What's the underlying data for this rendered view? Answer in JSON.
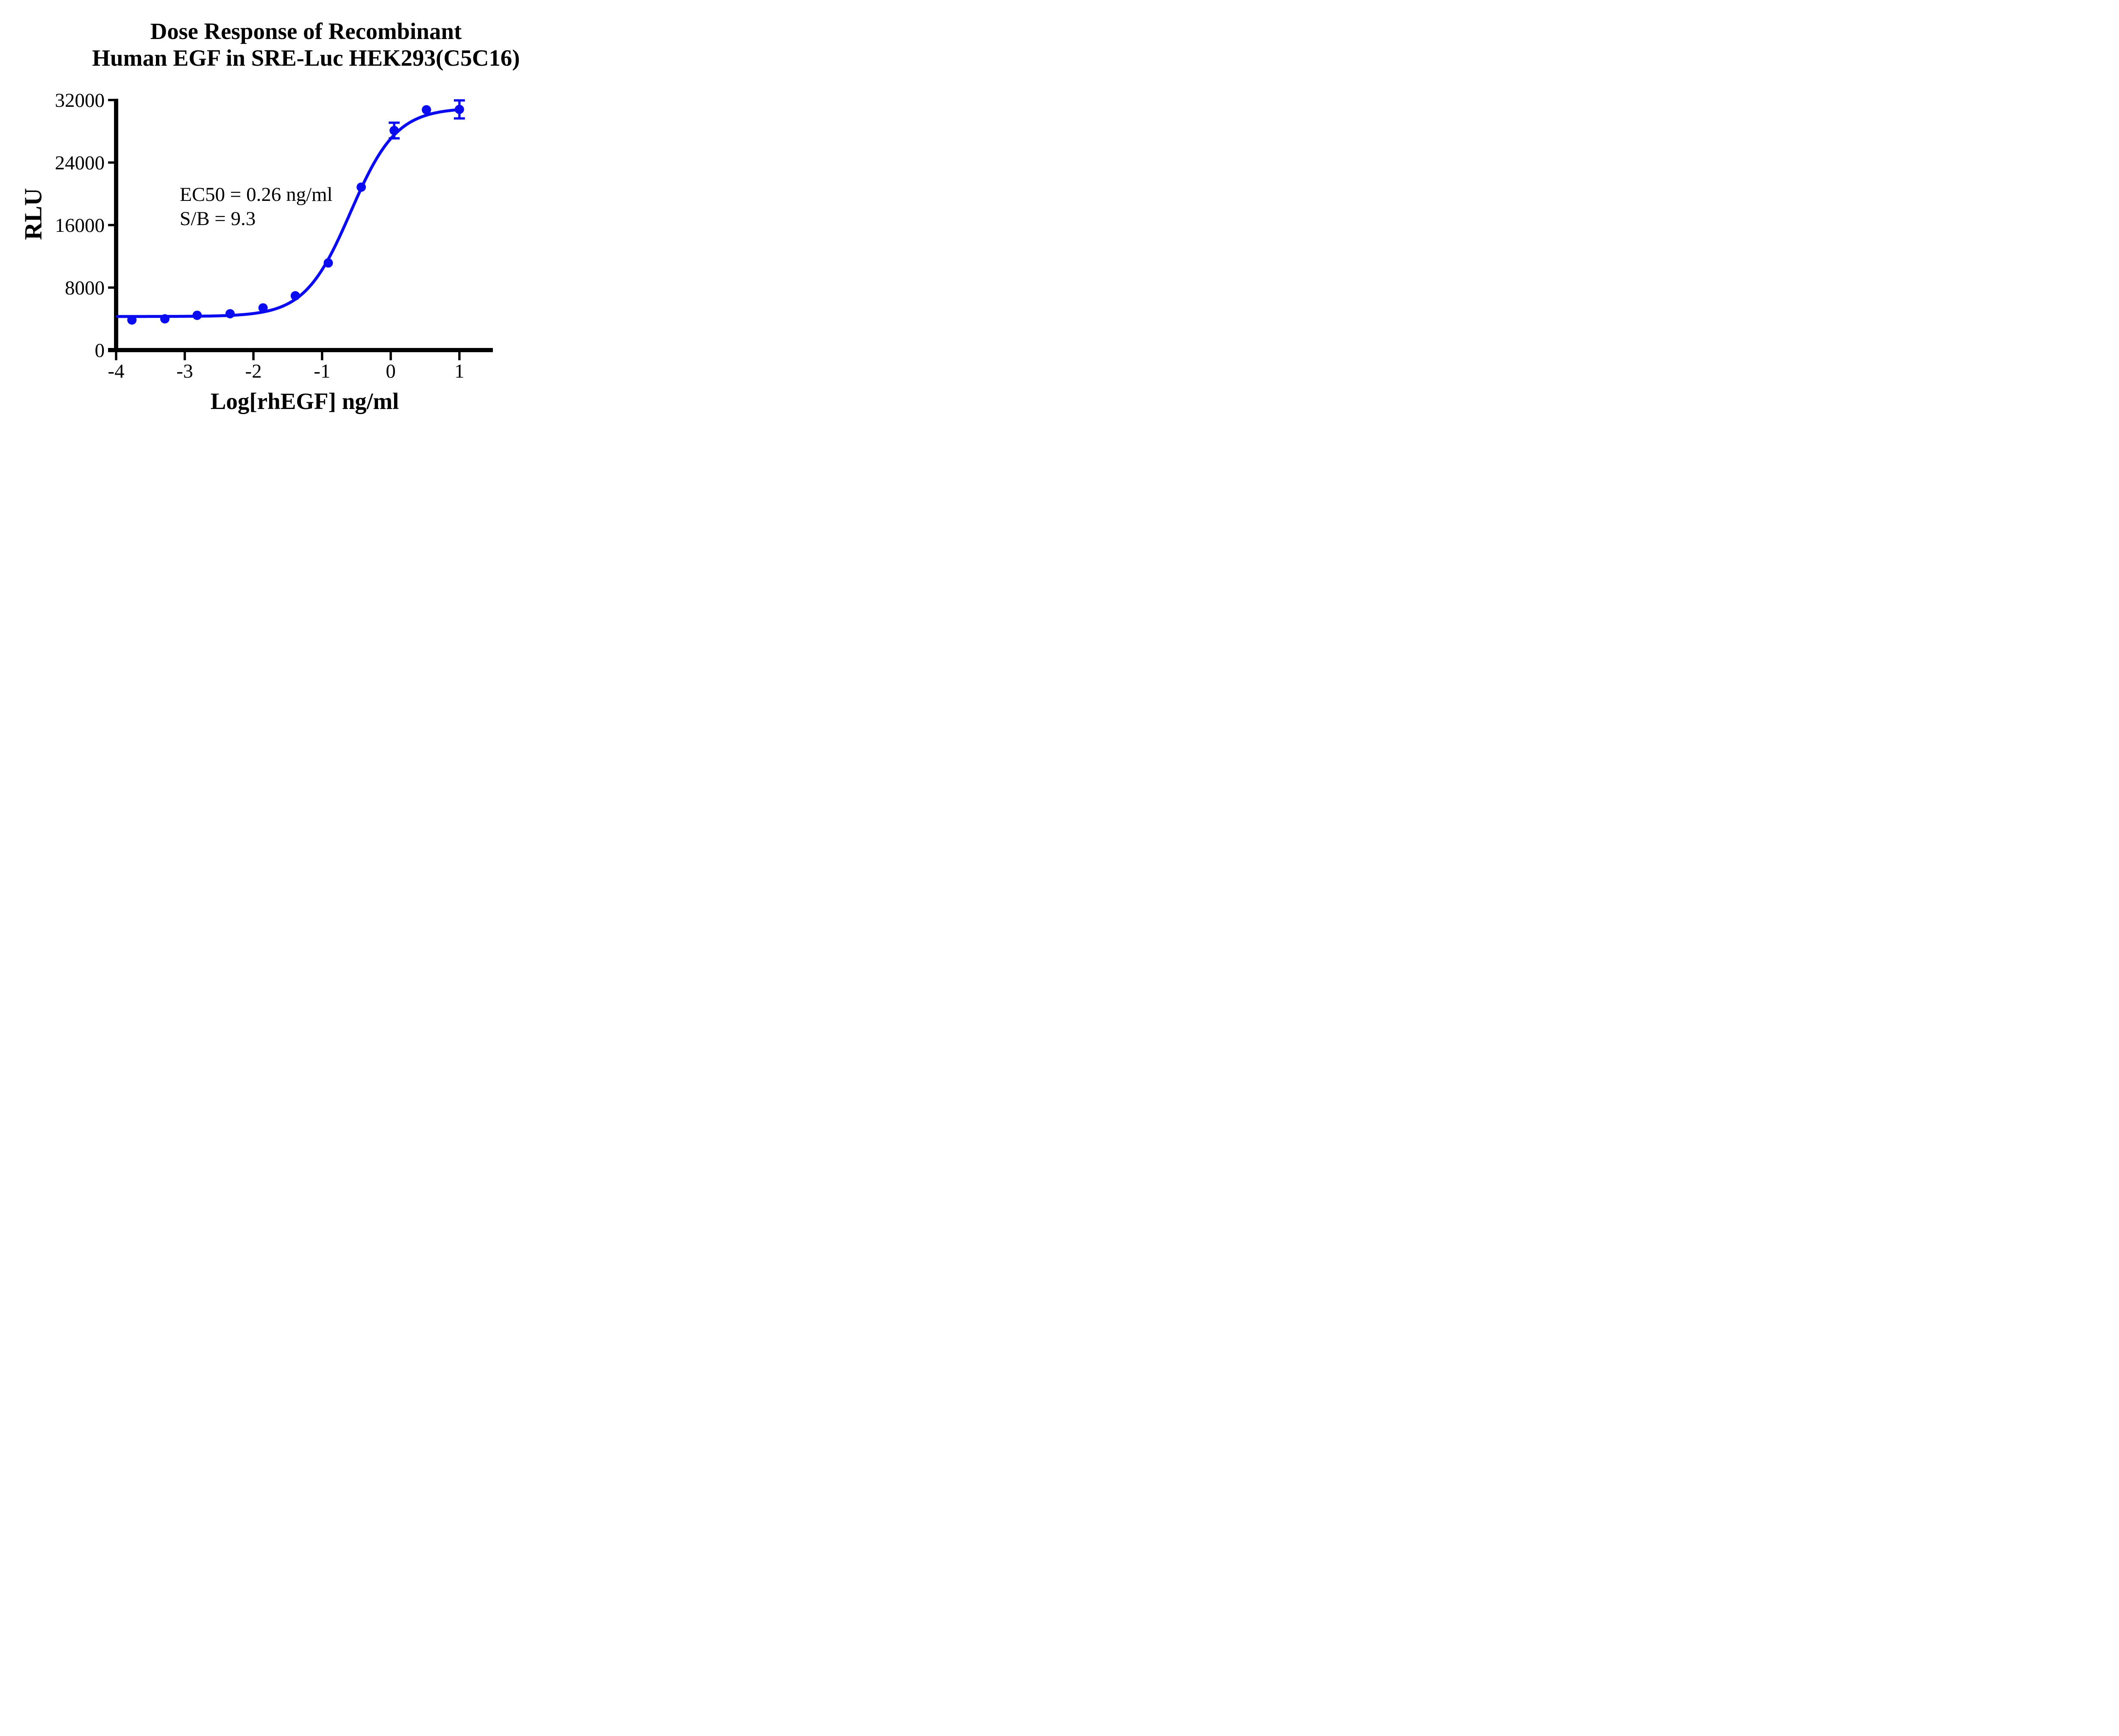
{
  "title": {
    "line1": "Dose Response of Recombinant",
    "line2": "Human EGF in SRE-Luc HEK293(C5C16)"
  },
  "annotation": {
    "line1": "EC50 = 0.26 ng/ml",
    "line2": "S/B = 9.3"
  },
  "colors": {
    "series": "#0B0BF0",
    "axis": "#000000",
    "background": "#ffffff"
  },
  "chart_data": {
    "type": "scatter",
    "title": "Dose Response of Recombinant Human EGF in SRE-Luc HEK293(C5C16)",
    "xlabel": "Log[rhEGF] ng/ml",
    "ylabel": "RLU",
    "xlim": [
      -4,
      1.5
    ],
    "ylim": [
      0,
      32000
    ],
    "x_ticks": [
      -4,
      -3,
      -2,
      -1,
      0,
      1
    ],
    "y_ticks": [
      0,
      8000,
      16000,
      24000,
      32000
    ],
    "grid": false,
    "legend_position": "none",
    "series": [
      {
        "name": "rhEGF",
        "marker": "circle",
        "color": "#0B0BF0",
        "x": [
          -3.77,
          -3.29,
          -2.82,
          -2.34,
          -1.86,
          -1.39,
          -0.91,
          -0.43,
          0.05,
          0.52,
          1.0
        ],
        "y": [
          3850,
          4000,
          4450,
          4650,
          5400,
          6950,
          11150,
          20850,
          28100,
          30750,
          30800
        ],
        "y_err": [
          0,
          0,
          0,
          0,
          0,
          0,
          0,
          0,
          1000,
          0,
          1150
        ]
      }
    ],
    "fit_curve": {
      "model": "4PL sigmoid",
      "bottom": 4300,
      "top": 31000,
      "log_ec50": -0.585,
      "hill_slope": 1.3,
      "x_range": [
        -3.98,
        1.0
      ]
    },
    "annotations": [
      "EC50 = 0.26 ng/ml",
      "S/B = 9.3"
    ]
  }
}
